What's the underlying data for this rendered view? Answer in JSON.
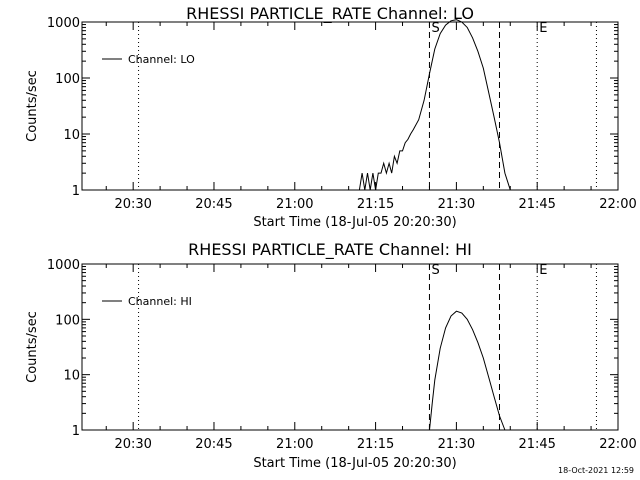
{
  "footer_timestamp": "18-Oct-2021 12:59",
  "chart_data": [
    {
      "type": "line",
      "title": "RHESSI PARTICLE_RATE Channel: LO",
      "xlabel": "Start Time (18-Jul-05 20:20:30)",
      "ylabel": "Counts/sec",
      "y_scale": "log",
      "ylim": [
        1,
        1000
      ],
      "xlim": [
        "20:20:30",
        "22:00"
      ],
      "x_tick_labels": [
        "20:30",
        "20:45",
        "21:00",
        "21:15",
        "21:30",
        "21:45",
        "22:00"
      ],
      "y_tick_labels": [
        "1",
        "10",
        "100",
        "1000"
      ],
      "legend": {
        "position": "top-left",
        "entries": [
          "Channel: LO"
        ]
      },
      "markers": [
        {
          "label": "S",
          "time": "21:25",
          "style": "dashed"
        },
        {
          "label": "",
          "time": "21:38",
          "style": "dashed"
        },
        {
          "label": "E",
          "time": "21:45",
          "style": "dotted"
        },
        {
          "label": "",
          "time": "20:31",
          "style": "dotted"
        },
        {
          "label": "",
          "time": "21:56",
          "style": "dotted"
        }
      ],
      "series": [
        {
          "name": "Channel: LO",
          "x": [
            "21:12",
            "21:12.5",
            "21:13",
            "21:13.5",
            "21:14",
            "21:14.5",
            "21:15",
            "21:15.5",
            "21:16",
            "21:16.5",
            "21:17",
            "21:17.5",
            "21:18",
            "21:18.5",
            "21:19",
            "21:19.5",
            "21:20",
            "21:20.5",
            "21:21",
            "21:21.5",
            "21:22",
            "21:23",
            "21:24",
            "21:25",
            "21:26",
            "21:27",
            "21:28",
            "21:29",
            "21:30",
            "21:31",
            "21:32",
            "21:33",
            "21:34",
            "21:35",
            "21:36",
            "21:37",
            "21:38",
            "21:39",
            "21:40"
          ],
          "y": [
            1,
            2,
            1,
            2,
            1,
            2,
            1,
            2,
            2,
            3,
            2,
            3,
            2,
            4,
            3,
            5,
            5,
            7,
            8,
            10,
            12,
            18,
            40,
            120,
            330,
            620,
            880,
            1050,
            1100,
            1000,
            800,
            520,
            300,
            150,
            55,
            20,
            7,
            2,
            1
          ]
        }
      ]
    },
    {
      "type": "line",
      "title": "RHESSI PARTICLE_RATE Channel: HI",
      "xlabel": "Start Time (18-Jul-05 20:20:30)",
      "ylabel": "Counts/sec",
      "y_scale": "log",
      "ylim": [
        1,
        1000
      ],
      "xlim": [
        "20:20:30",
        "22:00"
      ],
      "x_tick_labels": [
        "20:30",
        "20:45",
        "21:00",
        "21:15",
        "21:30",
        "21:45",
        "22:00"
      ],
      "y_tick_labels": [
        "1",
        "10",
        "100",
        "1000"
      ],
      "legend": {
        "position": "top-left",
        "entries": [
          "Channel: HI"
        ]
      },
      "markers": [
        {
          "label": "S",
          "time": "21:25",
          "style": "dashed"
        },
        {
          "label": "",
          "time": "21:38",
          "style": "dashed"
        },
        {
          "label": "E",
          "time": "21:45",
          "style": "dotted"
        },
        {
          "label": "",
          "time": "20:31",
          "style": "dotted"
        },
        {
          "label": "",
          "time": "21:56",
          "style": "dotted"
        }
      ],
      "series": [
        {
          "name": "Channel: HI",
          "x": [
            "21:25",
            "21:25.5",
            "21:26",
            "21:27",
            "21:28",
            "21:29",
            "21:30",
            "21:31",
            "21:32",
            "21:33",
            "21:34",
            "21:35",
            "21:36",
            "21:37",
            "21:38",
            "21:39"
          ],
          "y": [
            1,
            3,
            8,
            30,
            70,
            115,
            140,
            130,
            100,
            65,
            38,
            20,
            9,
            4,
            1.8,
            1
          ]
        }
      ]
    }
  ]
}
